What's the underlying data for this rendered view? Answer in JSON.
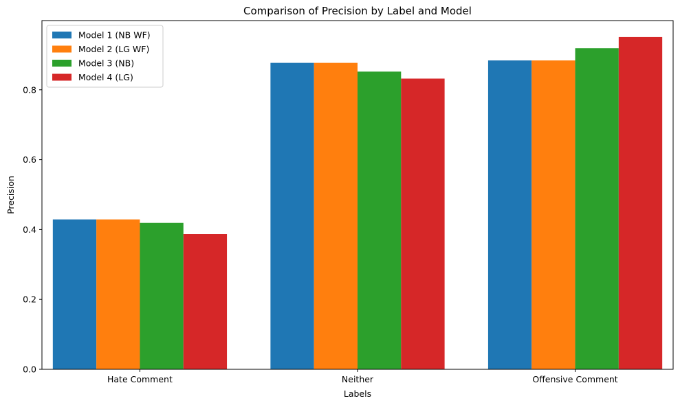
{
  "chart_data": {
    "type": "bar",
    "title": "Comparison of Precision by Label and Model",
    "xlabel": "Labels",
    "ylabel": "Precision",
    "categories": [
      "Hate Comment",
      "Neither",
      "Offensive Comment"
    ],
    "series": [
      {
        "name": "Model 1 (NB WF)",
        "color": "#1f77b4",
        "values": [
          0.429,
          0.877,
          0.884
        ]
      },
      {
        "name": "Model 2 (LG WF)",
        "color": "#ff7f0e",
        "values": [
          0.429,
          0.877,
          0.884
        ]
      },
      {
        "name": "Model 3 (NB)",
        "color": "#2ca02c",
        "values": [
          0.419,
          0.852,
          0.919
        ]
      },
      {
        "name": "Model 4 (LG)",
        "color": "#d62728",
        "values": [
          0.387,
          0.832,
          0.951
        ]
      }
    ],
    "yticks": [
      0.0,
      0.2,
      0.4,
      0.6,
      0.8
    ],
    "ylim": [
      0,
      0.998
    ],
    "grid": false,
    "legend_position": "top-left"
  }
}
